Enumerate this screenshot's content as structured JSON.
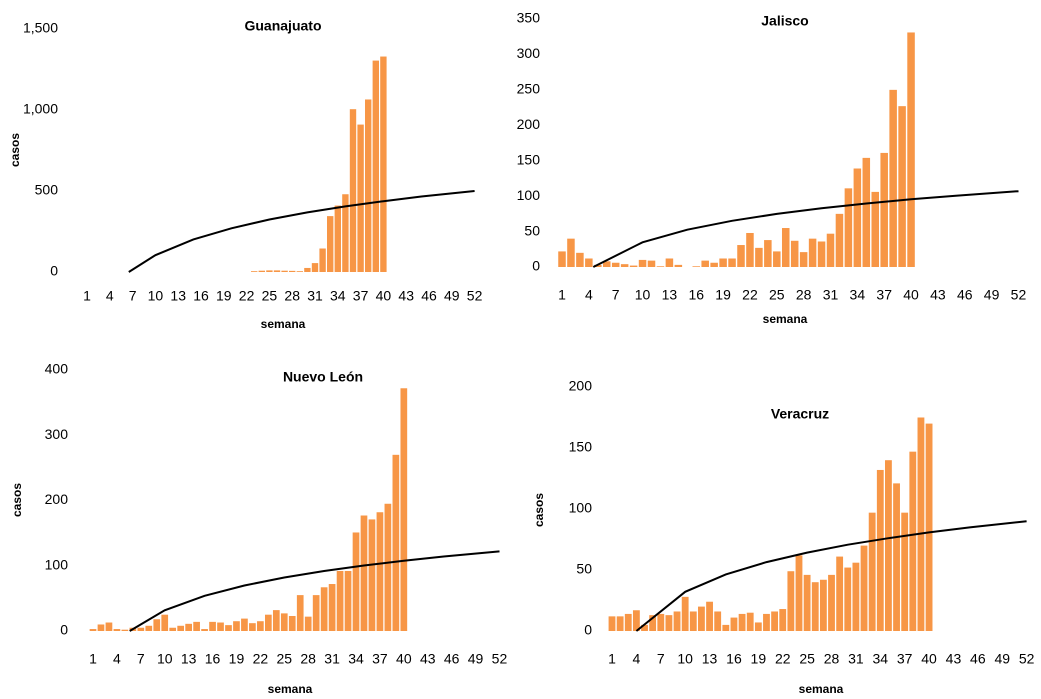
{
  "chart_data": [
    {
      "type": "bar",
      "title": "Guanajuato",
      "ylabel": "casos",
      "xlabel": "semana",
      "color": "#f79646",
      "categories": [
        "1",
        null,
        null,
        "4",
        null,
        null,
        "7",
        null,
        null,
        "10",
        null,
        null,
        "13",
        null,
        null,
        "16",
        null,
        null,
        "19",
        null,
        null,
        "22",
        null,
        null,
        "25",
        null,
        null,
        "28",
        null,
        null,
        "31",
        null,
        null,
        "34",
        null,
        null,
        "37",
        null,
        null,
        "40",
        null,
        null,
        "43",
        null,
        null,
        "46",
        null,
        null,
        "49",
        null,
        null,
        "52"
      ],
      "values": [
        0,
        0,
        0,
        0,
        0,
        0,
        0,
        0,
        0,
        0,
        0,
        0,
        0,
        0,
        0,
        0,
        0,
        0,
        0,
        0,
        0,
        0,
        5,
        8,
        10,
        10,
        8,
        7,
        5,
        25,
        55,
        145,
        345,
        410,
        480,
        1005,
        910,
        1065,
        1305,
        1330,
        null,
        null,
        null,
        null,
        null,
        null,
        null,
        null,
        null,
        null,
        null,
        null
      ],
      "trend": {
        "color": "#000000",
        "x": [
          6.5,
          10,
          15,
          20,
          25,
          30,
          35,
          40,
          45,
          52
        ],
        "values": [
          0,
          104,
          201,
          270,
          324,
          368,
          405,
          437,
          466,
          500
        ]
      },
      "ylim": [
        0,
        1500
      ],
      "yticks": [
        0,
        500,
        {
          "value": 1000,
          "label": "1,000"
        },
        {
          "value": 1500,
          "label": "1,500"
        }
      ]
    },
    {
      "type": "bar",
      "title": "Jalisco",
      "xlabel": "semana",
      "color": "#f79646",
      "categories": [
        "1",
        null,
        null,
        "4",
        null,
        null,
        "7",
        null,
        null,
        "10",
        null,
        null,
        "13",
        null,
        null,
        "16",
        null,
        null,
        "19",
        null,
        null,
        "22",
        null,
        null,
        "25",
        null,
        null,
        "28",
        null,
        null,
        "31",
        null,
        null,
        "34",
        null,
        null,
        "37",
        null,
        null,
        "40",
        null,
        null,
        "43",
        null,
        null,
        "46",
        null,
        null,
        "49",
        null,
        null,
        "52"
      ],
      "values": [
        22,
        40,
        20,
        12,
        3,
        8,
        6,
        4,
        2,
        10,
        9,
        1,
        12,
        3,
        0,
        1,
        9,
        6,
        12,
        12,
        31,
        48,
        27,
        38,
        22,
        55,
        37,
        21,
        40,
        36,
        47,
        75,
        111,
        139,
        154,
        106,
        161,
        250,
        227,
        331,
        null,
        null,
        null,
        null,
        null,
        null,
        null,
        null,
        null,
        null,
        null,
        null
      ],
      "trend": {
        "color": "#000000",
        "x": [
          4.5,
          10,
          15,
          20,
          25,
          30,
          35,
          40,
          45,
          52
        ],
        "values": [
          0,
          34.9,
          52.6,
          65.2,
          75,
          82.9,
          89.6,
          95.5,
          100.6,
          107
        ]
      },
      "ylim": [
        0,
        350
      ],
      "yticks": [
        0,
        50,
        100,
        150,
        200,
        250,
        300,
        350
      ]
    },
    {
      "type": "bar",
      "title": "Nuevo León",
      "ylabel": "casos",
      "xlabel": "semana",
      "color": "#f79646",
      "categories": [
        "1",
        null,
        null,
        "4",
        null,
        null,
        "7",
        null,
        null,
        "10",
        null,
        null,
        "13",
        null,
        null,
        "16",
        null,
        null,
        "19",
        null,
        null,
        "22",
        null,
        null,
        "25",
        null,
        null,
        "28",
        null,
        null,
        "31",
        null,
        null,
        "34",
        null,
        null,
        "37",
        null,
        null,
        "40",
        null,
        null,
        "43",
        null,
        null,
        "46",
        null,
        null,
        "49",
        null,
        null,
        "52"
      ],
      "values": [
        3,
        10,
        13,
        3,
        2,
        5,
        5,
        8,
        18,
        25,
        5,
        8,
        11,
        14,
        3,
        14,
        13,
        9,
        15,
        19,
        12,
        15,
        25,
        32,
        27,
        23,
        55,
        22,
        55,
        67,
        72,
        92,
        92,
        151,
        177,
        171,
        182,
        195,
        270,
        372,
        null,
        null,
        null,
        null,
        null,
        null,
        null,
        null,
        null,
        null,
        null,
        null
      ],
      "trend": {
        "color": "#000000",
        "x": [
          5.6,
          10,
          15,
          20,
          25,
          30,
          35,
          40,
          45,
          52
        ],
        "values": [
          0,
          31.8,
          54,
          69.8,
          82,
          92,
          100.4,
          107.7,
          114.2,
          122
        ]
      },
      "ylim": [
        0,
        400
      ],
      "yticks": [
        0,
        100,
        200,
        300,
        400
      ]
    },
    {
      "type": "bar",
      "title": "Veracruz",
      "ylabel": "casos",
      "xlabel": "semana",
      "color": "#f79646",
      "categories": [
        "1",
        null,
        null,
        "4",
        null,
        null,
        "7",
        null,
        null,
        "10",
        null,
        null,
        "13",
        null,
        null,
        "16",
        null,
        null,
        "19",
        null,
        null,
        "22",
        null,
        null,
        "25",
        null,
        null,
        "28",
        null,
        null,
        "31",
        null,
        null,
        "34",
        null,
        null,
        "37",
        null,
        null,
        "40",
        null,
        null,
        "43",
        null,
        null,
        "46",
        null,
        null,
        "49",
        null,
        null,
        "52"
      ],
      "values": [
        12,
        12,
        14,
        17,
        5,
        13,
        14,
        13,
        16,
        28,
        16,
        20,
        24,
        16,
        5,
        11,
        14,
        15,
        7,
        14,
        16,
        18,
        49,
        62,
        46,
        40,
        42,
        46,
        61,
        52,
        56,
        70,
        97,
        132,
        140,
        121,
        97,
        147,
        175,
        170,
        null,
        null,
        null,
        null,
        null,
        null,
        null,
        null,
        null,
        null,
        null,
        null
      ],
      "trend": {
        "color": "#000000",
        "x": [
          4,
          10,
          15,
          20,
          25,
          30,
          35,
          40,
          45,
          52
        ],
        "values": [
          0,
          32.1,
          46.4,
          56.5,
          64.3,
          70.7,
          76.1,
          80.8,
          84.9,
          90
        ]
      },
      "ylim": [
        0,
        200
      ],
      "yticks": [
        0,
        50,
        100,
        150,
        200
      ]
    }
  ]
}
